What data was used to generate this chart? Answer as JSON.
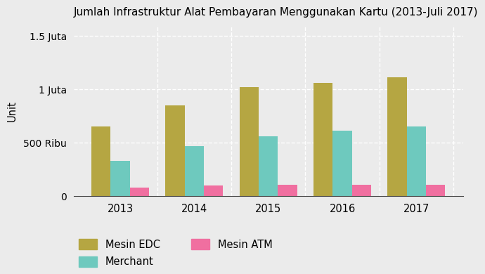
{
  "title": "Jumlah Infrastruktur Alat Pembayaran Menggunakan Kartu (2013-Juli 2017)",
  "years": [
    2013,
    2014,
    2015,
    2016,
    2017
  ],
  "mesin_edc": [
    650000,
    850000,
    1020000,
    1060000,
    1110000
  ],
  "merchant": [
    330000,
    470000,
    560000,
    610000,
    655000
  ],
  "mesin_atm": [
    80000,
    100000,
    105000,
    105000,
    105000
  ],
  "color_edc": "#b5a642",
  "color_merchant": "#6ec9be",
  "color_atm": "#f06fa0",
  "ylabel": "Unit",
  "ylim": [
    0,
    1600000
  ],
  "yticks": [
    0,
    500000,
    1000000,
    1500000
  ],
  "ytick_labels": [
    "0",
    "500 Ribu",
    "1 Juta",
    "1.5 Juta"
  ],
  "background_color": "#ebebeb",
  "grid_color": "#ffffff",
  "bar_width": 0.26,
  "legend_labels": [
    "Mesin EDC",
    "Merchant",
    "Mesin ATM"
  ]
}
